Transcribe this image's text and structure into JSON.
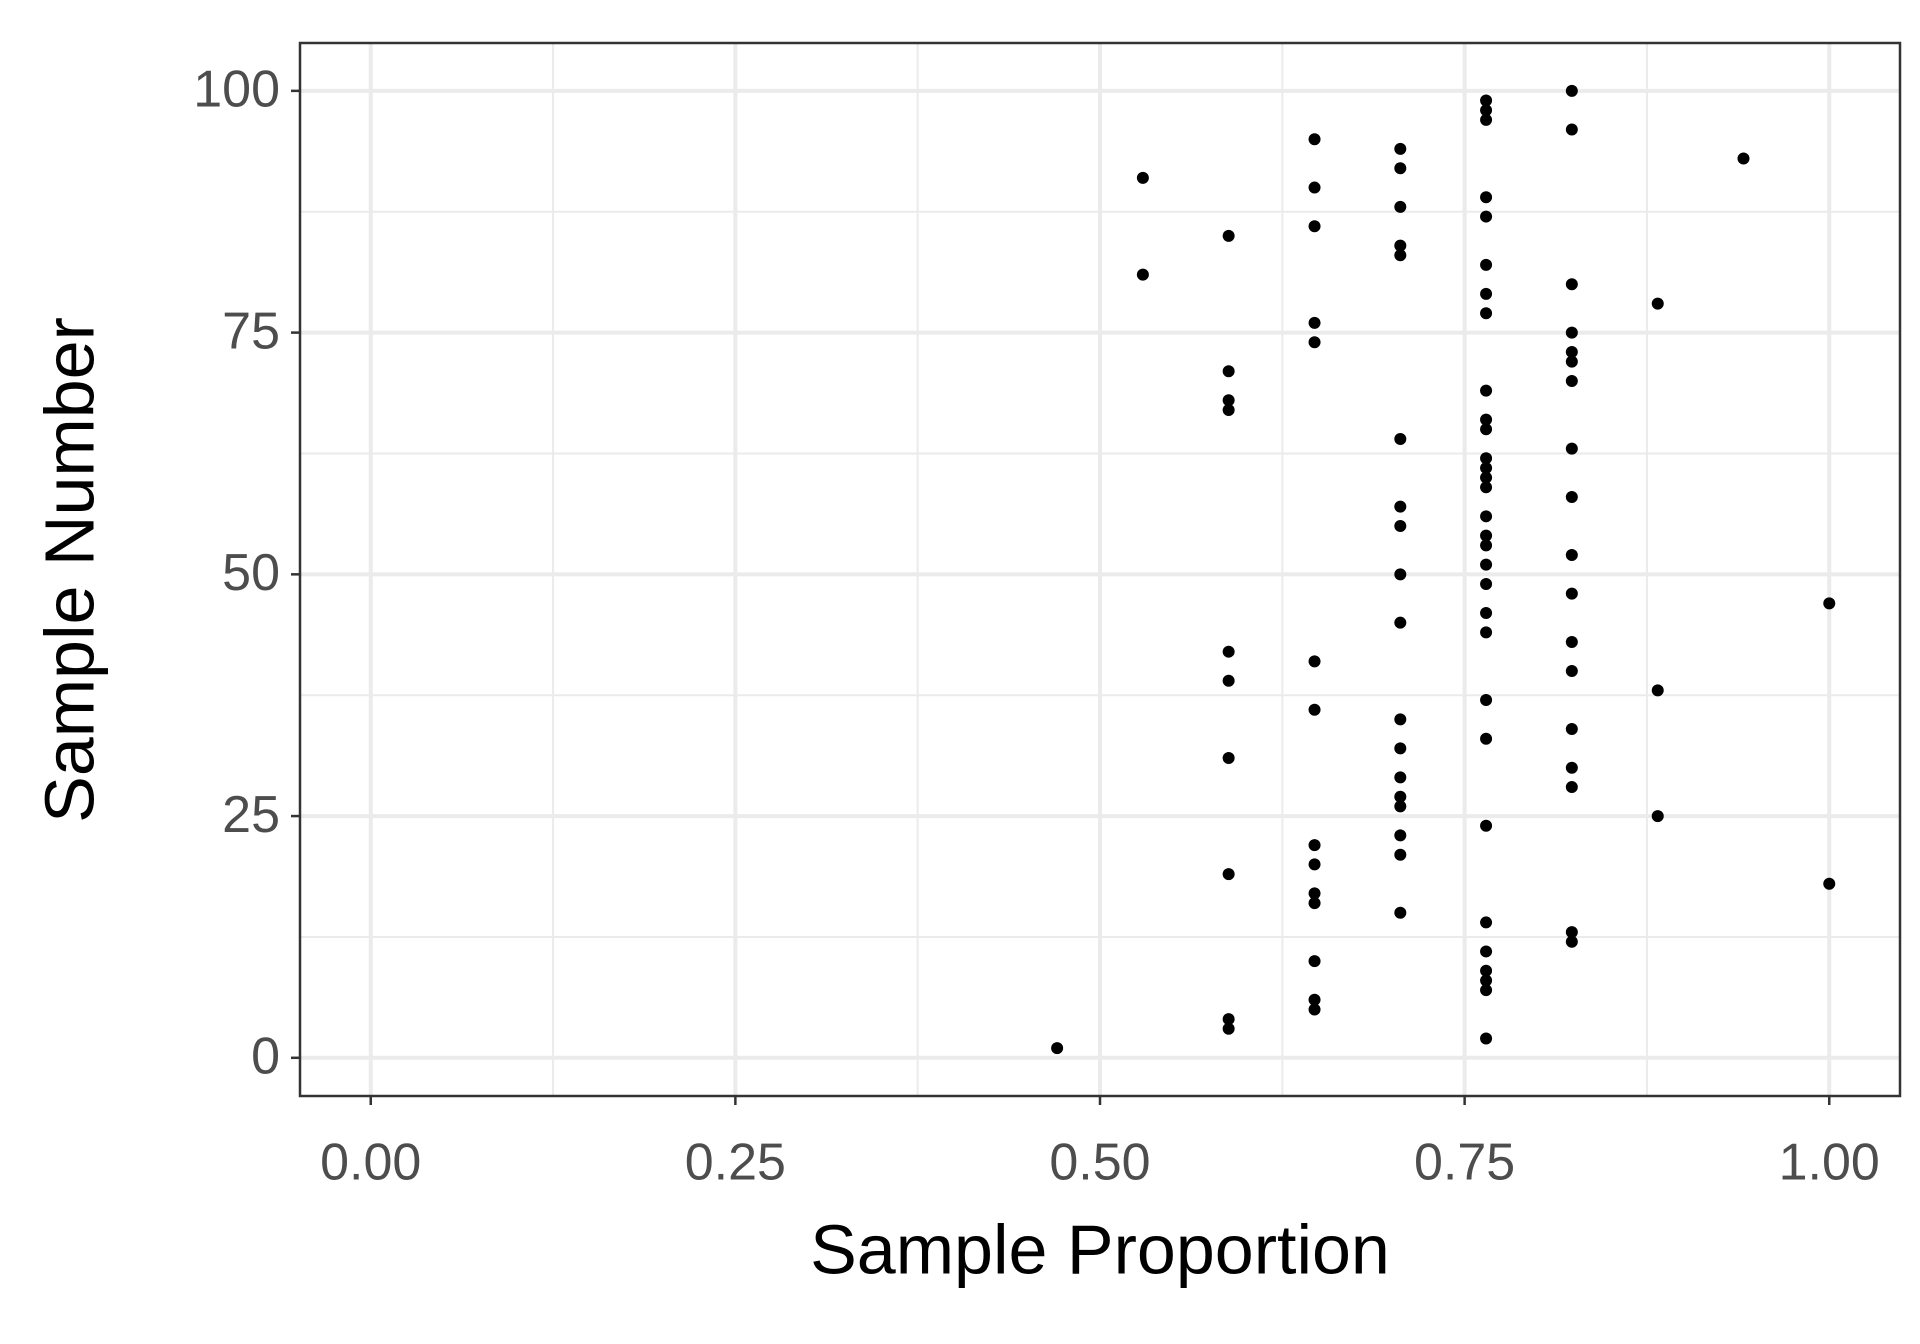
{
  "chart_data": {
    "type": "scatter",
    "x_label": "Sample Proportion",
    "y_label": "Sample Number",
    "x": [
      0.4706,
      0.7647,
      0.5882,
      0.5882,
      0.6471,
      0.6471,
      0.7647,
      0.7647,
      0.7647,
      0.6471,
      0.7647,
      0.8235,
      0.8235,
      0.7647,
      0.7059,
      0.6471,
      0.6471,
      1,
      0.5882,
      0.6471,
      0.7059,
      0.6471,
      0.7059,
      0.7647,
      0.8824,
      0.7059,
      0.7059,
      0.8235,
      0.7059,
      0.8235,
      0.5882,
      0.7059,
      0.7647,
      0.8235,
      0.7059,
      0.6471,
      0.7647,
      0.8824,
      0.5882,
      0.8235,
      0.6471,
      0.5882,
      0.8235,
      0.7647,
      0.7059,
      0.7647,
      1,
      0.8235,
      0.7647,
      0.7059,
      0.7647,
      0.8235,
      0.7647,
      0.7647,
      0.7059,
      0.7647,
      0.7059,
      0.8235,
      0.7647,
      0.7647,
      0.7647,
      0.7647,
      0.8235,
      0.7059,
      0.7647,
      0.7647,
      0.5882,
      0.5882,
      0.7647,
      0.8235,
      0.5882,
      0.8235,
      0.8235,
      0.6471,
      0.8235,
      0.6471,
      0.7647,
      0.8824,
      0.7647,
      0.8235,
      0.5294,
      0.7647,
      0.7059,
      0.7059,
      0.5882,
      0.6471,
      0.7647,
      0.7059,
      0.7647,
      0.6471,
      0.5294,
      0.7059,
      0.9412,
      0.7059,
      0.6471,
      0.8235,
      0.7647,
      0.7647,
      0.7647,
      0.8235
    ],
    "y": [
      1,
      2,
      3,
      4,
      5,
      6,
      7,
      8,
      9,
      10,
      11,
      12,
      13,
      14,
      15,
      16,
      17,
      18,
      19,
      20,
      21,
      22,
      23,
      24,
      25,
      26,
      27,
      28,
      29,
      30,
      31,
      32,
      33,
      34,
      35,
      36,
      37,
      38,
      39,
      40,
      41,
      42,
      43,
      44,
      45,
      46,
      47,
      48,
      49,
      50,
      51,
      52,
      53,
      54,
      55,
      56,
      57,
      58,
      59,
      60,
      61,
      62,
      63,
      64,
      65,
      66,
      67,
      68,
      69,
      70,
      71,
      72,
      73,
      74,
      75,
      76,
      77,
      78,
      79,
      80,
      81,
      82,
      83,
      84,
      85,
      86,
      87,
      88,
      89,
      90,
      91,
      92,
      93,
      94,
      95,
      96,
      97,
      98,
      99,
      100
    ],
    "color": "#000000",
    "xlim": [
      -0.0485,
      1.0485
    ],
    "ylim": [
      -3.95,
      104.95
    ],
    "xticks": [
      {
        "value": 0,
        "label": "0.00"
      },
      {
        "value": 0.25,
        "label": "0.25"
      },
      {
        "value": 0.5,
        "label": "0.50"
      },
      {
        "value": 0.75,
        "label": "0.75"
      },
      {
        "value": 1,
        "label": "1.00"
      }
    ],
    "yticks": [
      0,
      25,
      50,
      75,
      100
    ],
    "grid": true,
    "minor_grid": true
  }
}
